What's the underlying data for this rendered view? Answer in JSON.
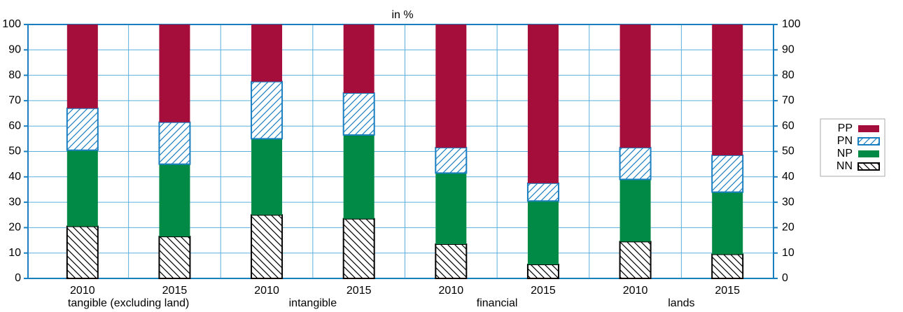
{
  "chart_data": {
    "type": "stacked_bar",
    "unit_label": "in %",
    "categories": [
      "2010",
      "2015",
      "2010",
      "2015",
      "2010",
      "2015",
      "2010",
      "2015"
    ],
    "groups": [
      "tangible (excluding land)",
      "intangible",
      "financial",
      "lands"
    ],
    "series": [
      {
        "name": "NN",
        "color": "#000000",
        "hatch": "back",
        "values": [
          20.5,
          16.5,
          25,
          23.5,
          13.5,
          5.5,
          14.5,
          9.5
        ]
      },
      {
        "name": "NP",
        "color": "#008a45",
        "values": [
          30,
          28.5,
          30,
          33,
          28,
          25,
          24.5,
          24.5
        ]
      },
      {
        "name": "PN",
        "color": "#1a7fc1",
        "hatch": "forward",
        "values": [
          16.5,
          16.5,
          22.5,
          16.5,
          10,
          7,
          12.5,
          14.5
        ]
      },
      {
        "name": "PP",
        "color": "#a50d3a",
        "values": [
          33,
          38.5,
          22.5,
          27,
          48.5,
          62.5,
          48.5,
          51.5
        ]
      }
    ],
    "ylim": [
      0,
      100
    ],
    "yticks": [
      0,
      10,
      20,
      30,
      40,
      50,
      60,
      70,
      80,
      90,
      100
    ],
    "grid": true
  }
}
